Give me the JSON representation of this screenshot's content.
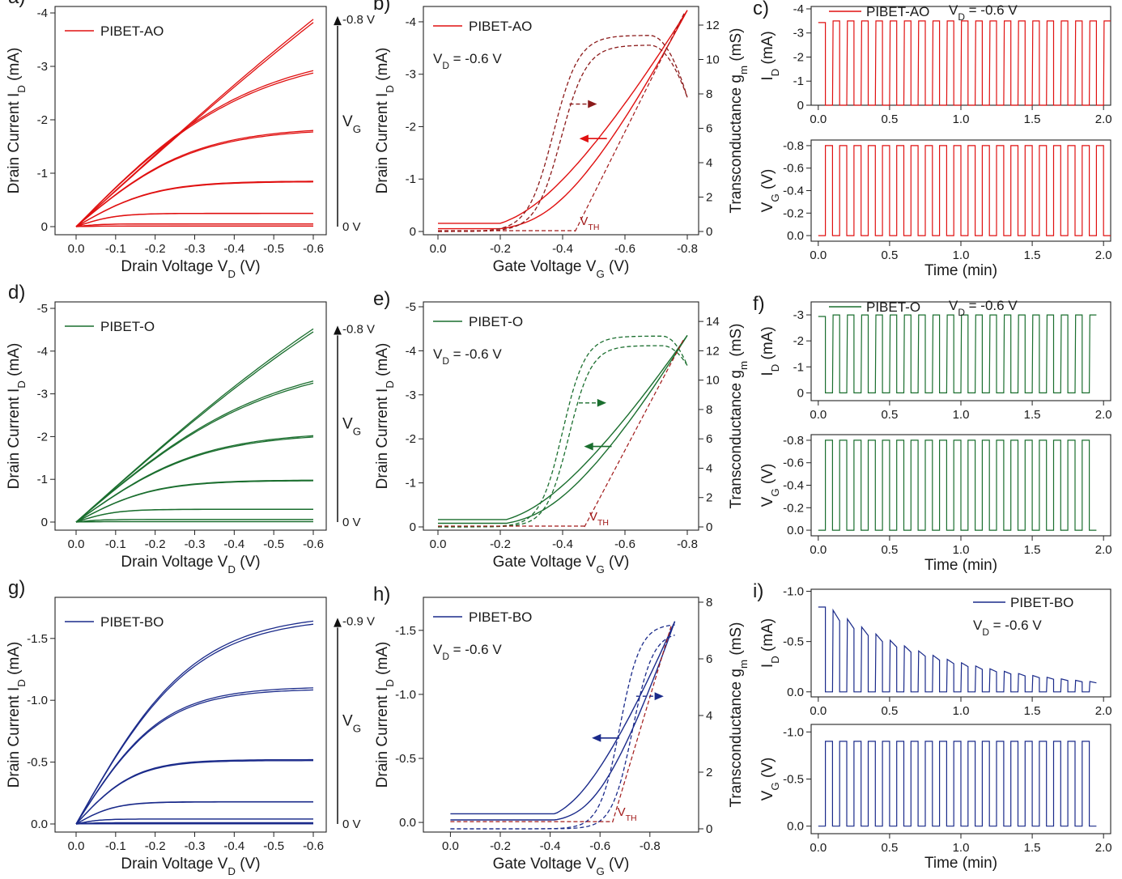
{
  "chart_data": [
    {
      "id": "a",
      "panel_label": "a)",
      "type": "line",
      "kind": "output",
      "color": "#e01010",
      "legend": "PIBET-AO",
      "xlabel": "Drain Voltage V",
      "xlabel_sub": "D",
      "xlabel_tail": " (V)",
      "ylabel": "Drain Current I",
      "ylabel_sub": "D",
      "ylabel_tail": " (mA)",
      "x_ticks": [
        "0.0",
        "-0.1",
        "-0.2",
        "-0.3",
        "-0.4",
        "-0.5",
        "-0.6"
      ],
      "y_ticks": [
        "0",
        "-1",
        "-2",
        "-3",
        "-4"
      ],
      "xlim": [
        0,
        -0.6
      ],
      "ylim": [
        0,
        -4
      ],
      "vg_top": "-0.8 V",
      "vg_bottom": "0 V",
      "vg_label": "V",
      "vg_label_sub": "G",
      "series": [
        {
          "vg": -0.8,
          "isat": -3.88,
          "vsat": 1.6
        },
        {
          "vg": -0.66,
          "isat": -2.92,
          "vsat": 0.45
        },
        {
          "vg": -0.53,
          "isat": -1.8,
          "vsat": 0.3
        },
        {
          "vg": -0.4,
          "isat": -0.85,
          "vsat": 0.2
        },
        {
          "vg": -0.26,
          "isat": -0.25,
          "vsat": 0.1
        },
        {
          "vg": -0.13,
          "isat": -0.05,
          "vsat": 0.06
        },
        {
          "vg": 0.0,
          "isat": -0.01,
          "vsat": 0.05
        }
      ]
    },
    {
      "id": "b",
      "panel_label": "b)",
      "type": "line",
      "kind": "transfer",
      "color": "#e01010",
      "gm_color": "#8b1a1a",
      "legend": "PIBET-AO",
      "vd_note": "V",
      "vd_note_sub": "D",
      "vd_note_tail": " = -0.6 V",
      "xlabel": "Gate Voltage V",
      "xlabel_sub": "G",
      "xlabel_tail": " (V)",
      "ylabel": "Drain Current I",
      "ylabel_sub": "D",
      "ylabel_tail": " (mA)",
      "y2label": "Transconductance g",
      "y2label_sub": "m",
      "y2label_tail": " (mS)",
      "x_ticks": [
        "0.0",
        "-0.2",
        "-0.4",
        "-0.6",
        "-0.8"
      ],
      "y_ticks": [
        "0",
        "-1",
        "-2",
        "-3",
        "-4"
      ],
      "y2_ticks": [
        "0",
        "2",
        "4",
        "6",
        "8",
        "10",
        "12"
      ],
      "xlim": [
        0,
        -0.8
      ],
      "ylim": [
        0,
        -4.2
      ],
      "y2lim": [
        0,
        12.8
      ],
      "vth_label": "V",
      "vth_sub": "TH",
      "vth": -0.44,
      "id_max": -4.22,
      "id_von": -0.2,
      "id_width": 0.3,
      "id_hyst": 0.03,
      "gm_peak": 11.4,
      "gm_peak_v": -0.68,
      "gm_rise_v": -0.37,
      "gm_width": 0.09,
      "gm_hyst": 0.025,
      "gm_end": 7.8
    },
    {
      "id": "c",
      "panel_label": "c)",
      "type": "line",
      "kind": "pulse",
      "color": "#e01010",
      "legend": "PIBET-AO",
      "vd_note": "V",
      "vd_note_sub": "D",
      "vd_note_tail": " = -0.6 V",
      "top_ylabel": "I",
      "top_ylabel_sub": "D",
      "top_ylabel_tail": " (mA)",
      "bottom_ylabel": "V",
      "bottom_ylabel_sub": "G",
      "bottom_ylabel_tail": " (V)",
      "xlabel": "Time (min)",
      "x_ticks": [
        "0.0",
        "0.5",
        "1.0",
        "1.5",
        "2.0"
      ],
      "xlim": [
        -0.05,
        2.05
      ],
      "top_y_ticks": [
        "0",
        "-1",
        "-2",
        "-3",
        "-4"
      ],
      "top_ylim": [
        0,
        -4.1
      ],
      "bottom_y_ticks": [
        "0.0",
        "-0.2",
        "-0.4",
        "-0.6",
        "-0.8"
      ],
      "bottom_ylim": [
        0.05,
        -0.85
      ],
      "i_on": -3.5,
      "i_off": 0.0,
      "vg_on": -0.8,
      "vg_off": 0.0,
      "period": 0.1,
      "pulses": 20,
      "t_start": 0.05,
      "decay": 0
    },
    {
      "id": "d",
      "panel_label": "d)",
      "type": "line",
      "kind": "output",
      "color": "#1a6e2e",
      "legend": "PIBET-O",
      "xlabel": "Drain Voltage V",
      "xlabel_sub": "D",
      "xlabel_tail": " (V)",
      "ylabel": "Drain Current I",
      "ylabel_sub": "D",
      "ylabel_tail": " (mA)",
      "x_ticks": [
        "0.0",
        "-0.1",
        "-0.2",
        "-0.3",
        "-0.4",
        "-0.5",
        "-0.6"
      ],
      "y_ticks": [
        "0",
        "-1",
        "-2",
        "-3",
        "-4",
        "-5"
      ],
      "xlim": [
        0,
        -0.6
      ],
      "ylim": [
        0,
        -5
      ],
      "vg_top": "-0.8 V",
      "vg_bottom": "0 V",
      "vg_label": "V",
      "vg_label_sub": "G",
      "series": [
        {
          "vg": -0.8,
          "isat": -4.52,
          "vsat": 1.1
        },
        {
          "vg": -0.66,
          "isat": -3.3,
          "vsat": 0.5
        },
        {
          "vg": -0.53,
          "isat": -2.02,
          "vsat": 0.32
        },
        {
          "vg": -0.4,
          "isat": -0.98,
          "vsat": 0.2
        },
        {
          "vg": -0.26,
          "isat": -0.3,
          "vsat": 0.1
        },
        {
          "vg": -0.13,
          "isat": -0.06,
          "vsat": 0.06
        },
        {
          "vg": 0.0,
          "isat": -0.01,
          "vsat": 0.05
        }
      ]
    },
    {
      "id": "e",
      "panel_label": "e)",
      "type": "line",
      "kind": "transfer",
      "color": "#1a6e2e",
      "gm_color": "#1a6e2e",
      "legend": "PIBET-O",
      "vd_note": "V",
      "vd_note_sub": "D",
      "vd_note_tail": " = -0.6 V",
      "xlabel": "Gate Voltage V",
      "xlabel_sub": "G",
      "xlabel_tail": " (V)",
      "ylabel": "Drain Current I",
      "ylabel_sub": "D",
      "ylabel_tail": " (mA)",
      "y2label": "Transconductance g",
      "y2label_sub": "m",
      "y2label_tail": " (mS)",
      "x_ticks": [
        "0.0",
        "-0.2",
        "-0.4",
        "-0.6",
        "-0.8"
      ],
      "y_ticks": [
        "0",
        "-1",
        "-2",
        "-3",
        "-4",
        "-5"
      ],
      "y2_ticks": [
        "0",
        "2",
        "4",
        "6",
        "8",
        "10",
        "12",
        "14"
      ],
      "xlim": [
        0,
        -0.8
      ],
      "ylim": [
        0,
        -5
      ],
      "y2lim": [
        0,
        15
      ],
      "vth_label": "V",
      "vth_sub": "TH",
      "vth": -0.47,
      "id_max": -4.35,
      "id_von": -0.22,
      "id_width": 0.3,
      "id_hyst": 0.02,
      "gm_peak": 13.0,
      "gm_peak_v": -0.72,
      "gm_rise_v": -0.4,
      "gm_width": 0.08,
      "gm_hyst": 0.02,
      "gm_end": 11.0
    },
    {
      "id": "f",
      "panel_label": "f)",
      "type": "line",
      "kind": "pulse",
      "color": "#1a6e2e",
      "legend": "PIBET-O",
      "vd_note": "V",
      "vd_note_sub": "D",
      "vd_note_tail": " = -0.6 V",
      "top_ylabel": "I",
      "top_ylabel_sub": "D",
      "top_ylabel_tail": " (mA)",
      "bottom_ylabel": "V",
      "bottom_ylabel_sub": "G",
      "bottom_ylabel_tail": " (V)",
      "xlabel": "Time (min)",
      "x_ticks": [
        "0.0",
        "0.5",
        "1.0",
        "1.5",
        "2.0"
      ],
      "xlim": [
        -0.05,
        2.05
      ],
      "top_y_ticks": [
        "0",
        "-1",
        "-2",
        "-3"
      ],
      "top_ylim": [
        0.3,
        -3.5
      ],
      "bottom_y_ticks": [
        "0.0",
        "-0.2",
        "-0.4",
        "-0.6",
        "-0.8"
      ],
      "bottom_ylim": [
        0.05,
        -0.85
      ],
      "i_on": -3.0,
      "i_off": 0.0,
      "vg_on": -0.8,
      "vg_off": 0.0,
      "period": 0.1,
      "pulses": 19,
      "t_start": 0.05,
      "decay": 0
    },
    {
      "id": "g",
      "panel_label": "g)",
      "type": "line",
      "kind": "output",
      "color": "#1a2a8a",
      "legend": "PIBET-BO",
      "xlabel": "Drain Voltage V",
      "xlabel_sub": "D",
      "xlabel_tail": " (V)",
      "ylabel": "Drain Current I",
      "ylabel_sub": "D",
      "ylabel_tail": " (mA)",
      "x_ticks": [
        "0.0",
        "-0.1",
        "-0.2",
        "-0.3",
        "-0.4",
        "-0.5",
        "-0.6"
      ],
      "y_ticks": [
        "0.0",
        "-0.5",
        "-1.0",
        "-1.5"
      ],
      "xlim": [
        0,
        -0.6
      ],
      "ylim": [
        0,
        -1.78
      ],
      "vg_top": "-0.9 V",
      "vg_bottom": "0 V",
      "vg_label": "V",
      "vg_label_sub": "G",
      "series": [
        {
          "vg": -0.9,
          "isat": -1.64,
          "vsat": 0.3
        },
        {
          "vg": -0.75,
          "isat": -1.1,
          "vsat": 0.22
        },
        {
          "vg": -0.6,
          "isat": -0.52,
          "vsat": 0.15
        },
        {
          "vg": -0.45,
          "isat": -0.18,
          "vsat": 0.1
        },
        {
          "vg": -0.3,
          "isat": -0.04,
          "vsat": 0.06
        },
        {
          "vg": -0.15,
          "isat": -0.01,
          "vsat": 0.05
        },
        {
          "vg": 0.0,
          "isat": -0.002,
          "vsat": 0.05
        }
      ]
    },
    {
      "id": "h",
      "panel_label": "h)",
      "type": "line",
      "kind": "transfer",
      "color": "#1a2a8a",
      "gm_color": "#1a2a8a",
      "legend": "PIBET-BO",
      "vd_note": "V",
      "vd_note_sub": "D",
      "vd_note_tail": " = -0.6 V",
      "xlabel": "Gate Voltage V",
      "xlabel_sub": "G",
      "xlabel_tail": " (V)",
      "ylabel": "Drain Current I",
      "ylabel_sub": "D",
      "ylabel_tail": " (mA)",
      "y2label": "Transconductance g",
      "y2label_sub": "m",
      "y2label_tail": " (mS)",
      "x_ticks": [
        "0.0",
        "-0.2",
        "-0.4",
        "-0.6",
        "-0.8"
      ],
      "y_ticks": [
        "0.0",
        "-0.5",
        "-1.0",
        "-1.5"
      ],
      "y2_ticks": [
        "0",
        "2",
        "4",
        "6",
        "8"
      ],
      "xlim": [
        0.05,
        -0.95
      ],
      "ylim": [
        0.05,
        -1.72
      ],
      "y2lim": [
        0,
        8
      ],
      "vth_label": "V",
      "vth_sub": "TH",
      "vth": -0.65,
      "id_max": -1.57,
      "id_von": -0.42,
      "id_width": 0.27,
      "id_hyst": 0.035,
      "gm_peak": 7.2,
      "gm_peak_v": -0.9,
      "gm_rise_v": -0.68,
      "gm_width": 0.09,
      "gm_hyst": 0.05,
      "gm_end": 5.6
    },
    {
      "id": "i",
      "panel_label": "i)",
      "type": "line",
      "kind": "pulse",
      "color": "#1a2a8a",
      "legend": "PIBET-BO",
      "vd_note": "V",
      "vd_note_sub": "D",
      "vd_note_tail": " = -0.6 V",
      "top_ylabel": "I",
      "top_ylabel_sub": "D",
      "top_ylabel_tail": " (mA)",
      "bottom_ylabel": "V",
      "bottom_ylabel_sub": "G",
      "bottom_ylabel_tail": " (V)",
      "xlabel": "Time (min)",
      "x_ticks": [
        "0.0",
        "0.5",
        "1.0",
        "1.5",
        "2.0"
      ],
      "xlim": [
        -0.05,
        2.05
      ],
      "top_y_ticks": [
        "0.0",
        "-0.5",
        "-1.0"
      ],
      "top_ylim": [
        0.05,
        -1.02
      ],
      "bottom_y_ticks": [
        "0.0",
        "-0.5",
        "-1.0"
      ],
      "bottom_ylim": [
        0.08,
        -1.08
      ],
      "i_on": -0.86,
      "i_off": 0.0,
      "vg_on": -0.9,
      "vg_off": 0.0,
      "period": 0.1,
      "pulses": 19,
      "t_start": 0.05,
      "decay": 1.15
    }
  ]
}
